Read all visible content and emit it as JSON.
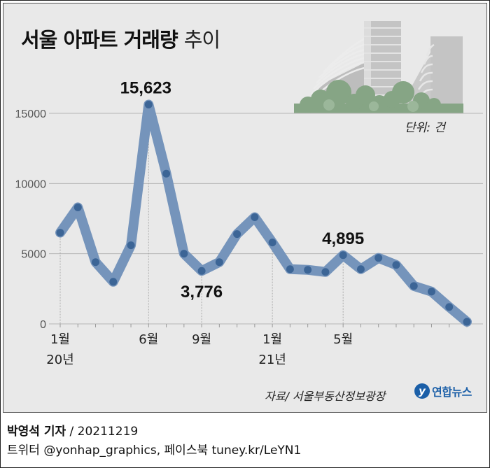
{
  "title": {
    "main": "서울 아파트 거래량",
    "light": "추이"
  },
  "unit_label": "단위: 건",
  "source": "자료/ 서울부동산정보광장",
  "logo": {
    "mark": "y",
    "text": "연합뉴스"
  },
  "credits": {
    "reporter": "박영석 기자",
    "separator": " /  ",
    "date": "20211219",
    "line2": "트위터 @yonhap_graphics, 페이스북 tuney.kr/LeYN1"
  },
  "colors": {
    "line": "#7594bb",
    "marker": "#3c6596",
    "panel": "#e9e9e9",
    "grid": "#b5b5b5"
  },
  "illustration": "apartment-buildings-with-trees",
  "chart_data": {
    "type": "line",
    "title": "서울 아파트 거래량 추이",
    "unit": "단위: 건",
    "ylim": [
      0,
      15000
    ],
    "yticks": [
      0,
      5000,
      10000,
      15000
    ],
    "grid": true,
    "x_labels": [
      {
        "index": 0,
        "line1": "1월",
        "line2": "20년"
      },
      {
        "index": 5,
        "line1": "6월",
        "line2": ""
      },
      {
        "index": 8,
        "line1": "9월",
        "line2": ""
      },
      {
        "index": 12,
        "line1": "1월",
        "line2": "21년"
      },
      {
        "index": 16,
        "line1": "5월",
        "line2": ""
      }
    ],
    "series": [
      {
        "values": [
          6500,
          8300,
          4400,
          3000,
          5600,
          15623,
          10700,
          5000,
          3776,
          4400,
          6400,
          7600,
          5800,
          3900,
          3850,
          3700,
          4895,
          3900,
          4700,
          4200,
          2700,
          2300,
          1200,
          150
        ]
      }
    ],
    "annotations": [
      {
        "index": 5,
        "text": "15,623"
      },
      {
        "index": 8,
        "text": "3,776"
      },
      {
        "index": 16,
        "text": "4,895"
      }
    ]
  }
}
